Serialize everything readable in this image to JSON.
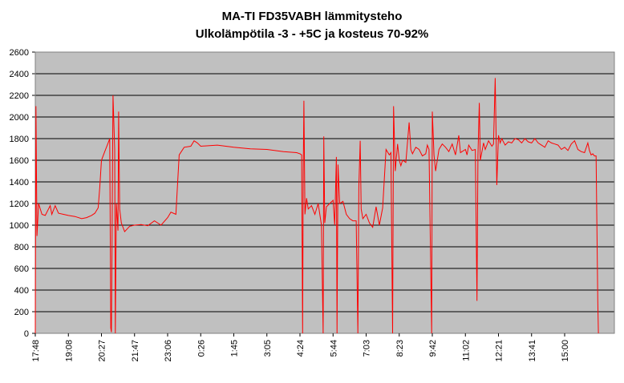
{
  "chart_data": {
    "type": "line",
    "title": "MA-TI FD35VABH lämmitysteho",
    "subtitle": "Ulkolämpötila  -3 - +5C ja kosteus 70-92%",
    "xlabel": "",
    "ylabel": "",
    "ylim": [
      0,
      2600
    ],
    "yticks": [
      0,
      200,
      400,
      600,
      800,
      1000,
      1200,
      1400,
      1600,
      1800,
      2000,
      2200,
      2400,
      2600
    ],
    "categories": [
      "17:48",
      "19:08",
      "20:27",
      "21:47",
      "23:06",
      "0:26",
      "1:45",
      "3:05",
      "4:24",
      "5:44",
      "7:03",
      "8:23",
      "9:42",
      "11:02",
      "12:21",
      "13:41",
      "15:00"
    ],
    "grid": true,
    "legend": "none",
    "colors": {
      "line": "#ff0000",
      "plot_bg": "#c0c0c0",
      "grid": "#000000"
    },
    "series": [
      {
        "name": "",
        "values": [
          [
            0,
            0
          ],
          [
            0.02,
            2100
          ],
          [
            0.05,
            900
          ],
          [
            0.1,
            1200
          ],
          [
            0.2,
            1100
          ],
          [
            0.3,
            1090
          ],
          [
            0.45,
            1180
          ],
          [
            0.5,
            1100
          ],
          [
            0.6,
            1180
          ],
          [
            0.7,
            1110
          ],
          [
            0.85,
            1100
          ],
          [
            1,
            1090
          ],
          [
            1.2,
            1080
          ],
          [
            1.4,
            1060
          ],
          [
            1.55,
            1070
          ],
          [
            1.7,
            1090
          ],
          [
            1.8,
            1110
          ],
          [
            1.9,
            1160
          ],
          [
            1.95,
            1350
          ],
          [
            2.0,
            1600
          ],
          [
            2.1,
            1680
          ],
          [
            2.2,
            1760
          ],
          [
            2.25,
            1800
          ],
          [
            2.28,
            50
          ],
          [
            2.3,
            10
          ],
          [
            2.35,
            2200
          ],
          [
            2.4,
            1700
          ],
          [
            2.42,
            0
          ],
          [
            2.45,
            1200
          ],
          [
            2.5,
            950
          ],
          [
            2.52,
            2050
          ],
          [
            2.55,
            1150
          ],
          [
            2.6,
            1020
          ],
          [
            2.7,
            940
          ],
          [
            2.85,
            990
          ],
          [
            3.0,
            1000
          ],
          [
            3.2,
            1005
          ],
          [
            3.4,
            995
          ],
          [
            3.6,
            1040
          ],
          [
            3.8,
            1000
          ],
          [
            4.0,
            1070
          ],
          [
            4.1,
            1120
          ],
          [
            4.25,
            1100
          ],
          [
            4.35,
            1650
          ],
          [
            4.5,
            1720
          ],
          [
            4.7,
            1730
          ],
          [
            4.8,
            1780
          ],
          [
            4.9,
            1760
          ],
          [
            5.0,
            1730
          ],
          [
            5.5,
            1740
          ],
          [
            6.0,
            1720
          ],
          [
            6.5,
            1705
          ],
          [
            7.0,
            1700
          ],
          [
            7.5,
            1680
          ],
          [
            7.9,
            1670
          ],
          [
            8.0,
            1660
          ],
          [
            8.05,
            1650
          ],
          [
            8.08,
            0
          ],
          [
            8.1,
            1500
          ],
          [
            8.12,
            2150
          ],
          [
            8.15,
            1100
          ],
          [
            8.2,
            1250
          ],
          [
            8.25,
            1150
          ],
          [
            8.35,
            1180
          ],
          [
            8.45,
            1100
          ],
          [
            8.55,
            1200
          ],
          [
            8.65,
            1000
          ],
          [
            8.7,
            0
          ],
          [
            8.72,
            1820
          ],
          [
            8.75,
            1020
          ],
          [
            8.8,
            1170
          ],
          [
            8.9,
            1200
          ],
          [
            9.0,
            1230
          ],
          [
            9.05,
            1000
          ],
          [
            9.1,
            1630
          ],
          [
            9.12,
            0
          ],
          [
            9.15,
            1560
          ],
          [
            9.2,
            1200
          ],
          [
            9.3,
            1220
          ],
          [
            9.4,
            1100
          ],
          [
            9.5,
            1060
          ],
          [
            9.6,
            1040
          ],
          [
            9.7,
            1040
          ],
          [
            9.75,
            0
          ],
          [
            9.78,
            1350
          ],
          [
            9.82,
            1780
          ],
          [
            9.85,
            1150
          ],
          [
            9.9,
            1060
          ],
          [
            10.0,
            1100
          ],
          [
            10.1,
            1020
          ],
          [
            10.2,
            980
          ],
          [
            10.3,
            1170
          ],
          [
            10.4,
            1000
          ],
          [
            10.5,
            1160
          ],
          [
            10.6,
            1700
          ],
          [
            10.7,
            1650
          ],
          [
            10.75,
            1670
          ],
          [
            10.8,
            0
          ],
          [
            10.83,
            2100
          ],
          [
            10.88,
            1500
          ],
          [
            10.95,
            1750
          ],
          [
            11.0,
            1600
          ],
          [
            11.05,
            1550
          ],
          [
            11.1,
            1600
          ],
          [
            11.2,
            1580
          ],
          [
            11.3,
            1950
          ],
          [
            11.35,
            1700
          ],
          [
            11.4,
            1660
          ],
          [
            11.5,
            1720
          ],
          [
            11.6,
            1700
          ],
          [
            11.7,
            1640
          ],
          [
            11.8,
            1660
          ],
          [
            11.85,
            1740
          ],
          [
            11.9,
            1700
          ],
          [
            11.98,
            0
          ],
          [
            12.0,
            2050
          ],
          [
            12.05,
            1650
          ],
          [
            12.1,
            1500
          ],
          [
            12.2,
            1700
          ],
          [
            12.3,
            1750
          ],
          [
            12.4,
            1720
          ],
          [
            12.5,
            1680
          ],
          [
            12.6,
            1750
          ],
          [
            12.7,
            1650
          ],
          [
            12.8,
            1830
          ],
          [
            12.85,
            1670
          ],
          [
            12.9,
            1680
          ],
          [
            13.0,
            1700
          ],
          [
            13.05,
            1650
          ],
          [
            13.1,
            1740
          ],
          [
            13.2,
            1690
          ],
          [
            13.3,
            1700
          ],
          [
            13.35,
            300
          ],
          [
            13.38,
            1640
          ],
          [
            13.42,
            2130
          ],
          [
            13.45,
            1600
          ],
          [
            13.5,
            1680
          ],
          [
            13.55,
            1760
          ],
          [
            13.6,
            1700
          ],
          [
            13.7,
            1780
          ],
          [
            13.8,
            1730
          ],
          [
            13.85,
            1750
          ],
          [
            13.9,
            2360
          ],
          [
            13.93,
            1800
          ],
          [
            13.95,
            1370
          ],
          [
            14.0,
            1830
          ],
          [
            14.05,
            1760
          ],
          [
            14.1,
            1800
          ],
          [
            14.2,
            1740
          ],
          [
            14.3,
            1770
          ],
          [
            14.4,
            1760
          ],
          [
            14.5,
            1800
          ],
          [
            14.6,
            1790
          ],
          [
            14.7,
            1760
          ],
          [
            14.8,
            1800
          ],
          [
            14.9,
            1770
          ],
          [
            15.0,
            1760
          ],
          [
            15.1,
            1800
          ],
          [
            15.2,
            1760
          ],
          [
            15.3,
            1740
          ],
          [
            15.4,
            1720
          ],
          [
            15.5,
            1780
          ],
          [
            15.6,
            1760
          ],
          [
            15.7,
            1750
          ],
          [
            15.8,
            1740
          ],
          [
            15.9,
            1700
          ],
          [
            16.0,
            1720
          ],
          [
            16.1,
            1690
          ],
          [
            16.2,
            1750
          ],
          [
            16.3,
            1780
          ],
          [
            16.4,
            1700
          ],
          [
            16.5,
            1680
          ],
          [
            16.6,
            1670
          ],
          [
            16.7,
            1760
          ],
          [
            16.75,
            1690
          ],
          [
            16.8,
            1650
          ],
          [
            16.85,
            1660
          ],
          [
            16.9,
            1640
          ],
          [
            16.95,
            1640
          ],
          [
            17.0,
            300
          ],
          [
            17.02,
            0
          ]
        ]
      }
    ]
  }
}
